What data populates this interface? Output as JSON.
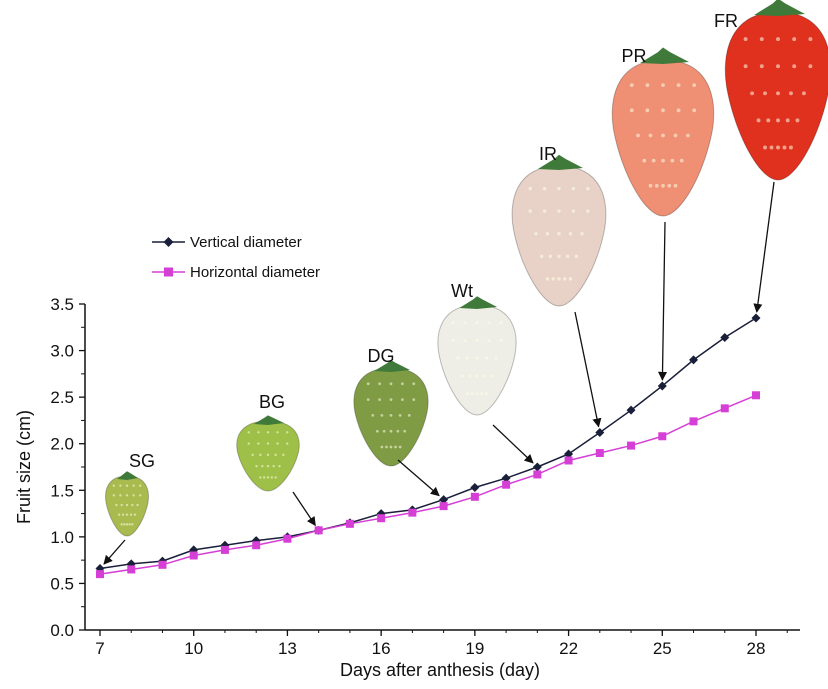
{
  "chart_data": {
    "type": "line",
    "xlabel": "Days after anthesis (day)",
    "ylabel": "Fruit size (cm)",
    "xlim": [
      7,
      28
    ],
    "ylim": [
      0.0,
      3.5
    ],
    "x_ticks": [
      "7",
      "10",
      "13",
      "16",
      "19",
      "22",
      "25",
      "28"
    ],
    "y_ticks": [
      "0.0",
      "0.5",
      "1.0",
      "1.5",
      "2.0",
      "2.5",
      "3.0",
      "3.5"
    ],
    "grid": false,
    "legend_position": "upper-left",
    "series": [
      {
        "name": "Vertical diameter",
        "color": "#1a1f3a",
        "marker": "diamond",
        "x": [
          7,
          8,
          9,
          10,
          11,
          12,
          13,
          14,
          15,
          16,
          17,
          18,
          19,
          20,
          21,
          22,
          23,
          24,
          25,
          26,
          27,
          28
        ],
        "y": [
          0.66,
          0.71,
          0.74,
          0.86,
          0.91,
          0.96,
          1.0,
          1.07,
          1.15,
          1.25,
          1.29,
          1.4,
          1.53,
          1.63,
          1.75,
          1.89,
          2.12,
          2.36,
          2.62,
          2.9,
          3.14,
          3.35
        ]
      },
      {
        "name": "Horizontal diameter",
        "color": "#d63fd6",
        "marker": "square",
        "x": [
          7,
          8,
          9,
          10,
          11,
          12,
          13,
          14,
          15,
          16,
          17,
          18,
          19,
          20,
          21,
          22,
          23,
          24,
          25,
          26,
          27,
          28
        ],
        "y": [
          0.6,
          0.65,
          0.7,
          0.8,
          0.86,
          0.91,
          0.98,
          1.07,
          1.14,
          1.2,
          1.26,
          1.33,
          1.43,
          1.56,
          1.67,
          1.82,
          1.9,
          1.98,
          2.08,
          2.24,
          2.38,
          2.52
        ]
      }
    ],
    "annotations": [
      {
        "label": "SG",
        "point_day": 7,
        "point_value": 0.66,
        "fruit_color": "#a9bb4e"
      },
      {
        "label": "BG",
        "point_day": 14,
        "point_value": 1.07,
        "fruit_color": "#9fc048"
      },
      {
        "label": "DG",
        "point_day": 18,
        "point_value": 1.4,
        "fruit_color": "#7f9c45"
      },
      {
        "label": "Wt",
        "point_day": 21,
        "point_value": 1.75,
        "fruit_color": "#eeeee6"
      },
      {
        "label": "IR",
        "point_day": 23,
        "point_value": 2.12,
        "fruit_color": "#e8d2c8"
      },
      {
        "label": "PR",
        "point_day": 25,
        "point_value": 2.62,
        "fruit_color": "#ef8f73"
      },
      {
        "label": "FR",
        "point_day": 28,
        "point_value": 3.35,
        "fruit_color": "#e0301e"
      }
    ]
  }
}
